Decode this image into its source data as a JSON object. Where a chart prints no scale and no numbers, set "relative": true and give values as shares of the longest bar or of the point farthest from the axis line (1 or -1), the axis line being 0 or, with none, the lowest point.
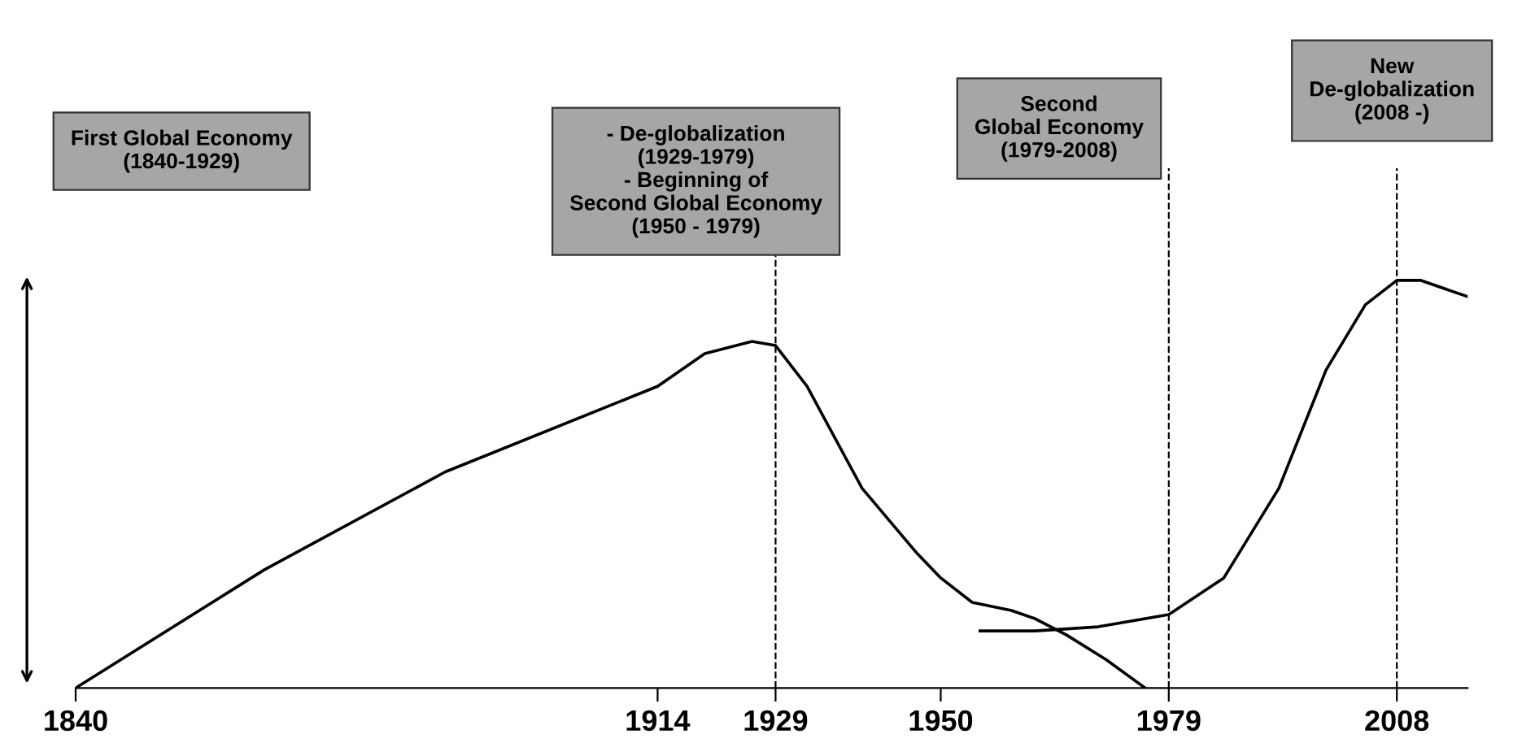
{
  "chart_data": {
    "type": "line",
    "relative": true,
    "xlim": [
      1840,
      2017
    ],
    "xticks": [
      1840,
      1914,
      1929,
      1950,
      1979,
      2008
    ],
    "tick_labels": "x",
    "series": [
      {
        "color": "#000000",
        "x": [
          1840,
          1864,
          1887,
          1914,
          1920,
          1926,
          1929,
          1933,
          1940,
          1947,
          1950,
          1954,
          1959,
          1962,
          1966,
          1971,
          1976
        ],
        "values": [
          0,
          0.29,
          0.53,
          0.74,
          0.82,
          0.85,
          0.84,
          0.74,
          0.49,
          0.33,
          0.27,
          0.21,
          0.19,
          0.17,
          0.13,
          0.07,
          0
        ]
      },
      {
        "color": "#000000",
        "x": [
          1955,
          1962,
          1970,
          1979,
          1986,
          1993,
          1999,
          2004,
          2008,
          2011,
          2017
        ],
        "values": [
          0.14,
          0.14,
          0.15,
          0.18,
          0.27,
          0.49,
          0.78,
          0.94,
          1.0,
          1.0,
          0.96
        ]
      }
    ],
    "ref_lines": [
      {
        "axis": "x",
        "value": 1929,
        "line_style": "dashed",
        "color": "#000000"
      },
      {
        "axis": "x",
        "value": 1979,
        "line_style": "dashed",
        "color": "#000000"
      },
      {
        "axis": "x",
        "value": 2008,
        "line_style": "dashed",
        "color": "#000000"
      }
    ],
    "annotations": [
      "First Global Economy\n(1840-1929)",
      "- De-globalization\n(1929-1979)\n- Beginning of\nSecond Global Economy\n(1950 - 1979)",
      "Second\nGlobal Economy\n(1979-2008)",
      "New\nDe-globalization\n(2008 -)"
    ]
  }
}
